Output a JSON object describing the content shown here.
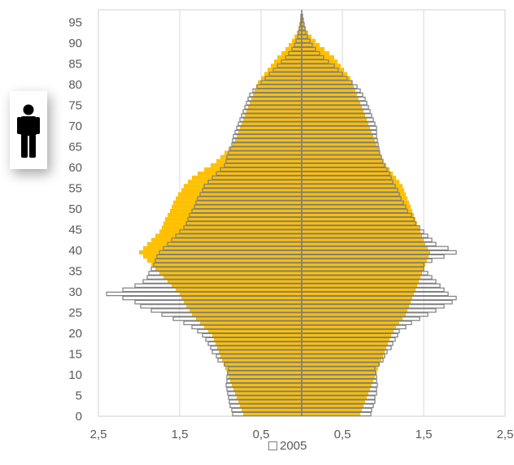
{
  "chart_data": {
    "type": "bar",
    "orientation": "horizontal",
    "subtype": "population-pyramid",
    "y_ticks": [
      "0",
      "5",
      "10",
      "15",
      "20",
      "25",
      "30",
      "35",
      "40",
      "45",
      "50",
      "55",
      "60",
      "65",
      "70",
      "75",
      "80",
      "85",
      "90",
      "95"
    ],
    "x_tick_labels": [
      "2,5",
      "1,5",
      "0,5",
      "0,5",
      "1,5",
      "2,5"
    ],
    "x_tick_values": [
      -2.5,
      -1.5,
      -0.5,
      0.5,
      1.5,
      2.5
    ],
    "xlim": [
      -2.5,
      2.5
    ],
    "ylim": [
      0,
      98
    ],
    "grid": "vertical",
    "legend": {
      "position": "bottom",
      "entries": [
        "2005"
      ]
    },
    "ages": [
      0,
      1,
      2,
      3,
      4,
      5,
      6,
      7,
      8,
      9,
      10,
      11,
      12,
      13,
      14,
      15,
      16,
      17,
      18,
      19,
      20,
      21,
      22,
      23,
      24,
      25,
      26,
      27,
      28,
      29,
      30,
      31,
      32,
      33,
      34,
      35,
      36,
      37,
      38,
      39,
      40,
      41,
      42,
      43,
      44,
      45,
      46,
      47,
      48,
      49,
      50,
      51,
      52,
      53,
      54,
      55,
      56,
      57,
      58,
      59,
      60,
      61,
      62,
      63,
      64,
      65,
      66,
      67,
      68,
      69,
      70,
      71,
      72,
      73,
      74,
      75,
      76,
      77,
      78,
      79,
      80,
      81,
      82,
      83,
      84,
      85,
      86,
      87,
      88,
      89,
      90,
      91,
      92,
      93,
      94,
      95,
      96,
      97
    ],
    "series": [
      {
        "name": "2005",
        "style": "outline",
        "color": "#7f7f7f",
        "left": [
          -0.85,
          -0.86,
          -0.88,
          -0.89,
          -0.9,
          -0.91,
          -0.92,
          -0.93,
          -0.92,
          -0.92,
          -0.91,
          -0.9,
          -0.95,
          -1.03,
          -1.05,
          -1.1,
          -1.12,
          -1.15,
          -1.18,
          -1.22,
          -1.28,
          -1.35,
          -1.45,
          -1.58,
          -1.72,
          -1.85,
          -1.98,
          -2.05,
          -2.2,
          -2.4,
          -2.2,
          -2.05,
          -1.95,
          -1.9,
          -1.88,
          -1.85,
          -1.82,
          -1.8,
          -1.78,
          -1.75,
          -1.7,
          -1.65,
          -1.6,
          -1.55,
          -1.5,
          -1.45,
          -1.42,
          -1.4,
          -1.38,
          -1.35,
          -1.32,
          -1.3,
          -1.28,
          -1.25,
          -1.22,
          -1.2,
          -1.15,
          -1.1,
          -1.05,
          -1.0,
          -0.95,
          -0.93,
          -0.92,
          -0.9,
          -0.88,
          -0.86,
          -0.85,
          -0.84,
          -0.82,
          -0.8,
          -0.78,
          -0.76,
          -0.74,
          -0.72,
          -0.7,
          -0.68,
          -0.66,
          -0.64,
          -0.6,
          -0.55,
          -0.5,
          -0.45,
          -0.4,
          -0.35,
          -0.3,
          -0.25,
          -0.2,
          -0.16,
          -0.12,
          -0.09,
          -0.07,
          -0.05,
          -0.04,
          -0.03,
          -0.02,
          -0.01,
          -0.01,
          0
        ],
        "right": [
          0.85,
          0.86,
          0.88,
          0.9,
          0.9,
          0.92,
          0.92,
          0.93,
          0.92,
          0.92,
          0.91,
          0.9,
          0.95,
          1.0,
          1.02,
          1.05,
          1.1,
          1.12,
          1.15,
          1.18,
          1.2,
          1.28,
          1.35,
          1.45,
          1.55,
          1.65,
          1.75,
          1.85,
          1.9,
          1.8,
          1.75,
          1.7,
          1.65,
          1.6,
          1.55,
          1.5,
          1.5,
          1.6,
          1.75,
          1.9,
          1.8,
          1.65,
          1.6,
          1.55,
          1.5,
          1.45,
          1.4,
          1.38,
          1.35,
          1.3,
          1.28,
          1.25,
          1.22,
          1.2,
          1.18,
          1.15,
          1.12,
          1.1,
          1.08,
          1.05,
          1.02,
          1.0,
          0.98,
          0.96,
          0.95,
          0.94,
          0.93,
          0.92,
          0.92,
          0.92,
          0.9,
          0.88,
          0.86,
          0.84,
          0.82,
          0.8,
          0.78,
          0.75,
          0.72,
          0.68,
          0.62,
          0.56,
          0.5,
          0.45,
          0.4,
          0.33,
          0.27,
          0.22,
          0.17,
          0.13,
          0.1,
          0.07,
          0.05,
          0.04,
          0.03,
          0.02,
          0.01,
          0
        ]
      },
      {
        "style": "filled",
        "color": "#FFC000",
        "left": [
          -0.72,
          -0.74,
          -0.76,
          -0.78,
          -0.8,
          -0.82,
          -0.84,
          -0.86,
          -0.88,
          -0.9,
          -0.92,
          -0.94,
          -0.96,
          -0.98,
          -1.0,
          -1.02,
          -1.04,
          -1.06,
          -1.08,
          -1.1,
          -1.15,
          -1.2,
          -1.25,
          -1.3,
          -1.35,
          -1.38,
          -1.42,
          -1.45,
          -1.48,
          -1.5,
          -1.55,
          -1.6,
          -1.65,
          -1.7,
          -1.75,
          -1.8,
          -1.85,
          -1.9,
          -1.95,
          -2.0,
          -1.95,
          -1.9,
          -1.85,
          -1.8,
          -1.75,
          -1.72,
          -1.7,
          -1.68,
          -1.65,
          -1.62,
          -1.6,
          -1.58,
          -1.55,
          -1.52,
          -1.48,
          -1.45,
          -1.4,
          -1.35,
          -1.28,
          -1.2,
          -1.12,
          -1.05,
          -1.0,
          -0.95,
          -0.9,
          -0.85,
          -0.82,
          -0.8,
          -0.78,
          -0.76,
          -0.74,
          -0.72,
          -0.7,
          -0.68,
          -0.66,
          -0.64,
          -0.62,
          -0.6,
          -0.58,
          -0.56,
          -0.54,
          -0.5,
          -0.46,
          -0.42,
          -0.38,
          -0.34,
          -0.3,
          -0.25,
          -0.2,
          -0.16,
          -0.12,
          -0.09,
          -0.06,
          -0.04,
          -0.03,
          -0.02,
          -0.01,
          0
        ],
        "right": [
          0.72,
          0.74,
          0.76,
          0.78,
          0.8,
          0.82,
          0.84,
          0.86,
          0.88,
          0.9,
          0.92,
          0.94,
          0.96,
          0.98,
          1.0,
          1.02,
          1.04,
          1.06,
          1.08,
          1.1,
          1.13,
          1.16,
          1.2,
          1.24,
          1.28,
          1.3,
          1.32,
          1.34,
          1.36,
          1.38,
          1.4,
          1.42,
          1.44,
          1.46,
          1.48,
          1.5,
          1.52,
          1.54,
          1.56,
          1.58,
          1.55,
          1.52,
          1.5,
          1.48,
          1.46,
          1.44,
          1.42,
          1.4,
          1.38,
          1.36,
          1.34,
          1.32,
          1.3,
          1.28,
          1.26,
          1.24,
          1.2,
          1.16,
          1.12,
          1.08,
          1.04,
          1.0,
          0.98,
          0.96,
          0.94,
          0.92,
          0.9,
          0.88,
          0.86,
          0.84,
          0.82,
          0.8,
          0.78,
          0.76,
          0.74,
          0.72,
          0.7,
          0.68,
          0.66,
          0.64,
          0.62,
          0.6,
          0.56,
          0.52,
          0.48,
          0.44,
          0.4,
          0.34,
          0.28,
          0.22,
          0.17,
          0.12,
          0.08,
          0.05,
          0.03,
          0.02,
          0.01,
          0
        ]
      }
    ]
  },
  "legend_label": "2005",
  "icons": {
    "badge": "male-person-icon"
  }
}
